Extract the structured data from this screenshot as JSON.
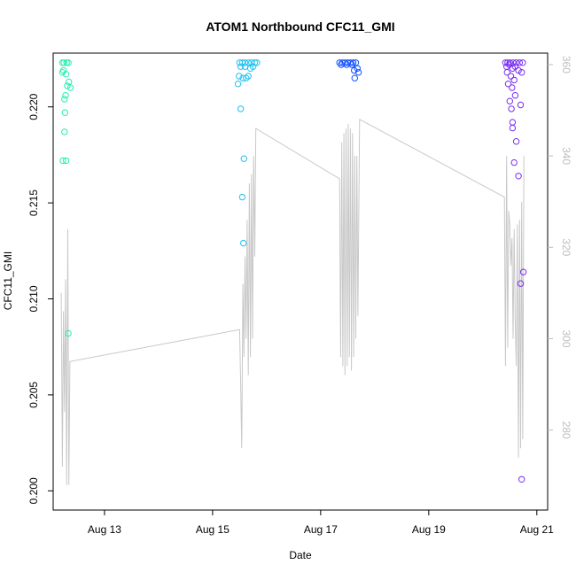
{
  "chart_data": {
    "type": "scatter",
    "title": "ATOM1 Northbound CFC11_GMI",
    "xlabel": "Date",
    "ylabel": "CFC11_GMI",
    "x_ticks": [
      {
        "day": 13,
        "label": "Aug 13"
      },
      {
        "day": 15,
        "label": "Aug 15"
      },
      {
        "day": 17,
        "label": "Aug 17"
      },
      {
        "day": 19,
        "label": "Aug 19"
      },
      {
        "day": 21,
        "label": "Aug 21"
      }
    ],
    "xlim": [
      12.05,
      21.2
    ],
    "ylim": [
      0.199,
      0.2228
    ],
    "y_ticks": [
      0.2,
      0.205,
      0.21,
      0.215,
      0.22
    ],
    "y_tick_labels": [
      "0.200",
      "0.205",
      "0.210",
      "0.215",
      "0.220"
    ],
    "y2_ticks": [
      280,
      300,
      320,
      340,
      360
    ],
    "y2_tick_labels": [
      "280",
      "300",
      "320",
      "340",
      "360"
    ],
    "y2lim": [
      262.5,
      362.5
    ],
    "line_color": "#c8c8c8",
    "point_colors": {
      "flight1": "#22f0b0",
      "flight2": "#20c0f0",
      "flight3": "#1050ff",
      "flight4": "#7a2ef0"
    },
    "series": [
      {
        "group": "flight1",
        "points": [
          [
            12.22,
            0.2223
          ],
          [
            12.25,
            0.2223
          ],
          [
            12.3,
            0.2223
          ],
          [
            12.33,
            0.2223
          ],
          [
            12.22,
            0.2218
          ],
          [
            12.24,
            0.2219
          ],
          [
            12.29,
            0.2217
          ],
          [
            12.34,
            0.2213
          ],
          [
            12.31,
            0.2211
          ],
          [
            12.37,
            0.221
          ],
          [
            12.28,
            0.2206
          ],
          [
            12.26,
            0.2204
          ],
          [
            12.27,
            0.2197
          ],
          [
            12.26,
            0.2187
          ],
          [
            12.23,
            0.2172
          ],
          [
            12.29,
            0.2172
          ],
          [
            12.33,
            0.2082
          ]
        ]
      },
      {
        "group": "flight2",
        "points": [
          [
            15.5,
            0.2223
          ],
          [
            15.55,
            0.2223
          ],
          [
            15.6,
            0.2223
          ],
          [
            15.66,
            0.2223
          ],
          [
            15.72,
            0.2223
          ],
          [
            15.78,
            0.2223
          ],
          [
            15.82,
            0.2223
          ],
          [
            15.52,
            0.2221
          ],
          [
            15.6,
            0.2221
          ],
          [
            15.7,
            0.222
          ],
          [
            15.75,
            0.2221
          ],
          [
            15.49,
            0.2216
          ],
          [
            15.56,
            0.2215
          ],
          [
            15.62,
            0.2215
          ],
          [
            15.66,
            0.2216
          ],
          [
            15.47,
            0.2212
          ],
          [
            15.52,
            0.2199
          ],
          [
            15.58,
            0.2173
          ],
          [
            15.55,
            0.2153
          ],
          [
            15.57,
            0.2129
          ]
        ]
      },
      {
        "group": "flight3",
        "points": [
          [
            17.35,
            0.2223
          ],
          [
            17.4,
            0.2223
          ],
          [
            17.45,
            0.2223
          ],
          [
            17.5,
            0.2223
          ],
          [
            17.55,
            0.2223
          ],
          [
            17.6,
            0.2223
          ],
          [
            17.65,
            0.2223
          ],
          [
            17.38,
            0.2222
          ],
          [
            17.48,
            0.2222
          ],
          [
            17.58,
            0.2222
          ],
          [
            17.68,
            0.222
          ],
          [
            17.62,
            0.2219
          ],
          [
            17.7,
            0.2218
          ],
          [
            17.63,
            0.2215
          ]
        ]
      },
      {
        "group": "flight4",
        "points": [
          [
            20.42,
            0.2223
          ],
          [
            20.46,
            0.2223
          ],
          [
            20.5,
            0.2223
          ],
          [
            20.56,
            0.2223
          ],
          [
            20.62,
            0.2223
          ],
          [
            20.68,
            0.2223
          ],
          [
            20.74,
            0.2223
          ],
          [
            20.44,
            0.2221
          ],
          [
            20.49,
            0.2222
          ],
          [
            20.55,
            0.222
          ],
          [
            20.6,
            0.2221
          ],
          [
            20.66,
            0.2219
          ],
          [
            20.72,
            0.2218
          ],
          [
            20.45,
            0.2218
          ],
          [
            20.52,
            0.2216
          ],
          [
            20.58,
            0.2214
          ],
          [
            20.47,
            0.2212
          ],
          [
            20.54,
            0.221
          ],
          [
            20.6,
            0.2206
          ],
          [
            20.5,
            0.2203
          ],
          [
            20.53,
            0.2199
          ],
          [
            20.7,
            0.2201
          ],
          [
            20.55,
            0.2192
          ],
          [
            20.55,
            0.2189
          ],
          [
            20.62,
            0.2182
          ],
          [
            20.58,
            0.2171
          ],
          [
            20.66,
            0.2164
          ],
          [
            20.75,
            0.2114
          ],
          [
            20.7,
            0.2108
          ],
          [
            20.72,
            0.2006
          ]
        ]
      }
    ],
    "y2_line": [
      [
        12.2,
        310
      ],
      [
        12.22,
        272
      ],
      [
        12.24,
        306
      ],
      [
        12.26,
        284
      ],
      [
        12.28,
        313
      ],
      [
        12.3,
        268
      ],
      [
        12.32,
        324
      ],
      [
        12.34,
        268
      ],
      [
        12.36,
        295
      ],
      [
        15.5,
        302
      ],
      [
        15.52,
        290
      ],
      [
        15.54,
        276
      ],
      [
        15.56,
        312
      ],
      [
        15.58,
        296
      ],
      [
        15.6,
        318
      ],
      [
        15.62,
        300
      ],
      [
        15.64,
        326
      ],
      [
        15.66,
        292
      ],
      [
        15.68,
        334
      ],
      [
        15.7,
        296
      ],
      [
        15.72,
        336
      ],
      [
        15.74,
        300
      ],
      [
        15.76,
        340
      ],
      [
        15.78,
        318
      ],
      [
        15.8,
        346
      ],
      [
        17.35,
        335
      ],
      [
        17.37,
        296
      ],
      [
        17.39,
        343
      ],
      [
        17.41,
        294
      ],
      [
        17.43,
        345
      ],
      [
        17.45,
        292
      ],
      [
        17.47,
        346
      ],
      [
        17.49,
        294
      ],
      [
        17.51,
        347
      ],
      [
        17.53,
        296
      ],
      [
        17.55,
        346
      ],
      [
        17.57,
        293
      ],
      [
        17.59,
        345
      ],
      [
        17.61,
        296
      ],
      [
        17.63,
        340
      ],
      [
        17.65,
        300
      ],
      [
        17.67,
        340
      ],
      [
        17.69,
        305
      ],
      [
        17.72,
        348
      ],
      [
        20.4,
        331
      ],
      [
        20.42,
        294
      ],
      [
        20.44,
        340
      ],
      [
        20.46,
        298
      ],
      [
        20.48,
        328
      ],
      [
        20.5,
        325
      ],
      [
        20.52,
        316
      ],
      [
        20.54,
        322
      ],
      [
        20.56,
        300
      ],
      [
        20.58,
        324
      ],
      [
        20.6,
        304
      ],
      [
        20.62,
        294
      ],
      [
        20.64,
        325
      ],
      [
        20.66,
        274
      ],
      [
        20.68,
        326
      ],
      [
        20.7,
        276
      ],
      [
        20.72,
        330
      ],
      [
        20.74,
        278
      ],
      [
        20.76,
        340
      ]
    ]
  }
}
